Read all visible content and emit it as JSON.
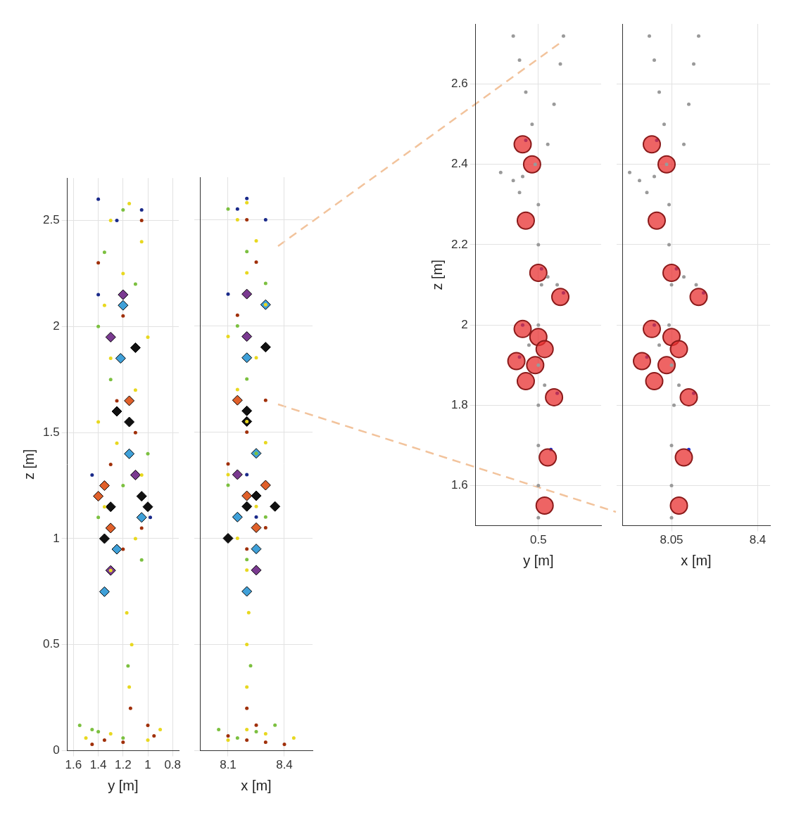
{
  "chart_data": [
    {
      "type": "scatter",
      "grid": true,
      "tick_labels": true,
      "zlabel": "z [m]",
      "ylabel": "y [m]",
      "xlabel": "x [m]",
      "zlim": [
        0,
        2.7
      ],
      "zticks": [
        0,
        0.5,
        1,
        1.5,
        2,
        2.5
      ],
      "ylim": [
        1.65,
        0.75
      ],
      "yticks": [
        1.6,
        1.4,
        1.2,
        1,
        0.8
      ],
      "xlim": [
        7.95,
        8.55
      ],
      "xticks": [
        8.1,
        8.4
      ],
      "series": [
        {
          "color": "#e8d820",
          "marker": "dot",
          "values": [
            [
              8.1,
              1.0,
              0.05
            ],
            [
              8.3,
              1.3,
              0.08
            ],
            [
              8.45,
              1.5,
              0.06
            ],
            [
              8.2,
              0.9,
              0.1
            ],
            [
              8.2,
              1.15,
              0.3
            ],
            [
              8.2,
              1.13,
              0.5
            ],
            [
              8.21,
              1.17,
              0.65
            ],
            [
              8.2,
              1.3,
              0.85
            ],
            [
              8.15,
              1.1,
              1.0
            ],
            [
              8.25,
              1.35,
              1.15
            ],
            [
              8.1,
              1.05,
              1.3
            ],
            [
              8.3,
              1.25,
              1.45
            ],
            [
              8.2,
              1.4,
              1.55
            ],
            [
              8.15,
              1.1,
              1.7
            ],
            [
              8.25,
              1.3,
              1.85
            ],
            [
              8.1,
              1.0,
              1.95
            ],
            [
              8.3,
              1.35,
              2.1
            ],
            [
              8.2,
              1.2,
              2.25
            ],
            [
              8.25,
              1.05,
              2.4
            ],
            [
              8.15,
              1.3,
              2.5
            ],
            [
              8.2,
              1.15,
              2.58
            ]
          ]
        },
        {
          "color": "#7cc040",
          "marker": "dot",
          "values": [
            [
              8.05,
              1.45,
              0.1
            ],
            [
              8.35,
              1.55,
              0.12
            ],
            [
              8.25,
              1.4,
              0.09
            ],
            [
              8.15,
              1.2,
              0.06
            ],
            [
              8.22,
              1.16,
              0.4
            ],
            [
              8.2,
              1.05,
              0.9
            ],
            [
              8.3,
              1.4,
              1.1
            ],
            [
              8.1,
              1.2,
              1.25
            ],
            [
              8.25,
              1.0,
              1.4
            ],
            [
              8.2,
              1.3,
              1.75
            ],
            [
              8.15,
              1.4,
              2.0
            ],
            [
              8.3,
              1.1,
              2.2
            ],
            [
              8.2,
              1.35,
              2.35
            ],
            [
              8.1,
              1.2,
              2.55
            ]
          ]
        },
        {
          "color": "#a0300a",
          "marker": "dot",
          "values": [
            [
              8.3,
              1.2,
              0.04
            ],
            [
              8.1,
              0.95,
              0.07
            ],
            [
              8.4,
              1.45,
              0.03
            ],
            [
              8.2,
              1.35,
              0.05
            ],
            [
              8.25,
              1.0,
              0.12
            ],
            [
              8.2,
              1.14,
              0.2
            ],
            [
              8.2,
              1.2,
              0.95
            ],
            [
              8.3,
              1.05,
              1.05
            ],
            [
              8.1,
              1.3,
              1.35
            ],
            [
              8.2,
              1.1,
              1.5
            ],
            [
              8.3,
              1.25,
              1.65
            ],
            [
              8.15,
              1.2,
              2.05
            ],
            [
              8.25,
              1.4,
              2.3
            ],
            [
              8.2,
              1.05,
              2.5
            ]
          ]
        },
        {
          "color": "#1a2a8a",
          "marker": "dot",
          "values": [
            [
              8.2,
              1.4,
              2.6
            ],
            [
              8.15,
              1.05,
              2.55
            ],
            [
              8.3,
              1.25,
              2.5
            ],
            [
              8.2,
              1.45,
              1.3
            ],
            [
              8.25,
              0.98,
              1.1
            ],
            [
              8.1,
              1.4,
              2.15
            ]
          ]
        },
        {
          "color": "#111111",
          "marker": "diamond",
          "values": [
            [
              8.2,
              1.3,
              1.15
            ],
            [
              8.25,
              1.05,
              1.2
            ],
            [
              8.1,
              1.35,
              1.0
            ],
            [
              8.3,
              1.1,
              1.9
            ],
            [
              8.2,
              1.25,
              1.6
            ],
            [
              8.35,
              1.0,
              1.15
            ],
            [
              8.2,
              1.15,
              1.55
            ]
          ]
        },
        {
          "color": "#3fa0d8",
          "marker": "diamond",
          "values": [
            [
              8.2,
              1.22,
              1.85
            ],
            [
              8.25,
              1.15,
              1.4
            ],
            [
              8.15,
              1.05,
              1.1
            ],
            [
              8.2,
              1.35,
              0.75
            ],
            [
              8.3,
              1.2,
              2.1
            ],
            [
              8.25,
              1.25,
              0.95
            ]
          ]
        },
        {
          "color": "#e0602a",
          "marker": "diamond",
          "values": [
            [
              8.2,
              1.4,
              1.2
            ],
            [
              8.25,
              1.3,
              1.05
            ],
            [
              8.15,
              1.15,
              1.65
            ],
            [
              8.3,
              1.35,
              1.25
            ]
          ]
        },
        {
          "color": "#7a3a90",
          "marker": "diamond",
          "values": [
            [
              8.2,
              1.2,
              2.15
            ],
            [
              8.25,
              1.3,
              0.85
            ],
            [
              8.15,
              1.1,
              1.3
            ],
            [
              8.2,
              1.3,
              1.95
            ]
          ]
        }
      ]
    },
    {
      "type": "scatter",
      "grid": true,
      "tick_labels": true,
      "zlabel": "z [m]",
      "ylabel": "y [m]",
      "xlabel": "x [m]",
      "zlim": [
        1.5,
        2.75
      ],
      "zticks": [
        1.6,
        1.8,
        2,
        2.2,
        2.4,
        2.6
      ],
      "ylim": [
        0.3,
        0.7
      ],
      "yticks": [
        0.5
      ],
      "xlim": [
        7.85,
        8.45
      ],
      "xticks": [
        8.05,
        8.4
      ],
      "series": [
        {
          "color": "#9a9a9a",
          "marker": "dot",
          "values": [
            [
              8.05,
              0.5,
              1.52
            ],
            [
              8.05,
              0.5,
              1.6
            ],
            [
              8.05,
              0.5,
              1.7
            ],
            [
              8.06,
              0.5,
              1.8
            ],
            [
              8.05,
              0.5,
              1.9
            ],
            [
              8.04,
              0.5,
              2.0
            ],
            [
              8.05,
              0.51,
              2.1
            ],
            [
              8.04,
              0.5,
              2.2
            ],
            [
              8.04,
              0.5,
              2.3
            ],
            [
              8.03,
              0.49,
              2.4
            ],
            [
              8.02,
              0.48,
              2.5
            ],
            [
              8.0,
              0.46,
              2.58
            ],
            [
              7.98,
              0.44,
              2.66
            ],
            [
              7.96,
              0.42,
              2.72
            ],
            [
              8.1,
              0.53,
              2.45
            ],
            [
              8.12,
              0.55,
              2.55
            ],
            [
              8.14,
              0.57,
              2.65
            ],
            [
              8.16,
              0.58,
              2.72
            ],
            [
              7.98,
              0.45,
              2.37
            ],
            [
              7.92,
              0.42,
              2.36
            ],
            [
              7.88,
              0.38,
              2.38
            ],
            [
              7.95,
              0.44,
              2.33
            ],
            [
              8.1,
              0.53,
              2.12
            ],
            [
              8.15,
              0.56,
              2.1
            ],
            [
              8.0,
              0.47,
              1.95
            ],
            [
              8.08,
              0.52,
              1.85
            ]
          ]
        },
        {
          "color": "#e83030",
          "marker": "circle",
          "values": [
            [
              7.97,
              0.45,
              2.45
            ],
            [
              8.03,
              0.48,
              2.4
            ],
            [
              7.99,
              0.46,
              2.26
            ],
            [
              8.05,
              0.5,
              2.13
            ],
            [
              8.16,
              0.57,
              2.07
            ],
            [
              7.97,
              0.45,
              1.99
            ],
            [
              8.05,
              0.5,
              1.97
            ],
            [
              8.08,
              0.52,
              1.94
            ],
            [
              7.93,
              0.43,
              1.91
            ],
            [
              8.03,
              0.49,
              1.9
            ],
            [
              7.98,
              0.46,
              1.86
            ],
            [
              8.12,
              0.55,
              1.82
            ],
            [
              8.1,
              0.53,
              1.67
            ],
            [
              8.08,
              0.52,
              1.55
            ]
          ]
        },
        {
          "color": "#2030d0",
          "marker": "dot",
          "values": [
            [
              7.99,
              0.46,
              2.46
            ],
            [
              8.07,
              0.51,
              2.14
            ],
            [
              8.18,
              0.58,
              2.08
            ],
            [
              7.98,
              0.45,
              2.0
            ],
            [
              7.95,
              0.44,
              1.92
            ],
            [
              8.14,
              0.56,
              1.83
            ],
            [
              8.12,
              0.54,
              1.69
            ]
          ]
        }
      ]
    }
  ]
}
